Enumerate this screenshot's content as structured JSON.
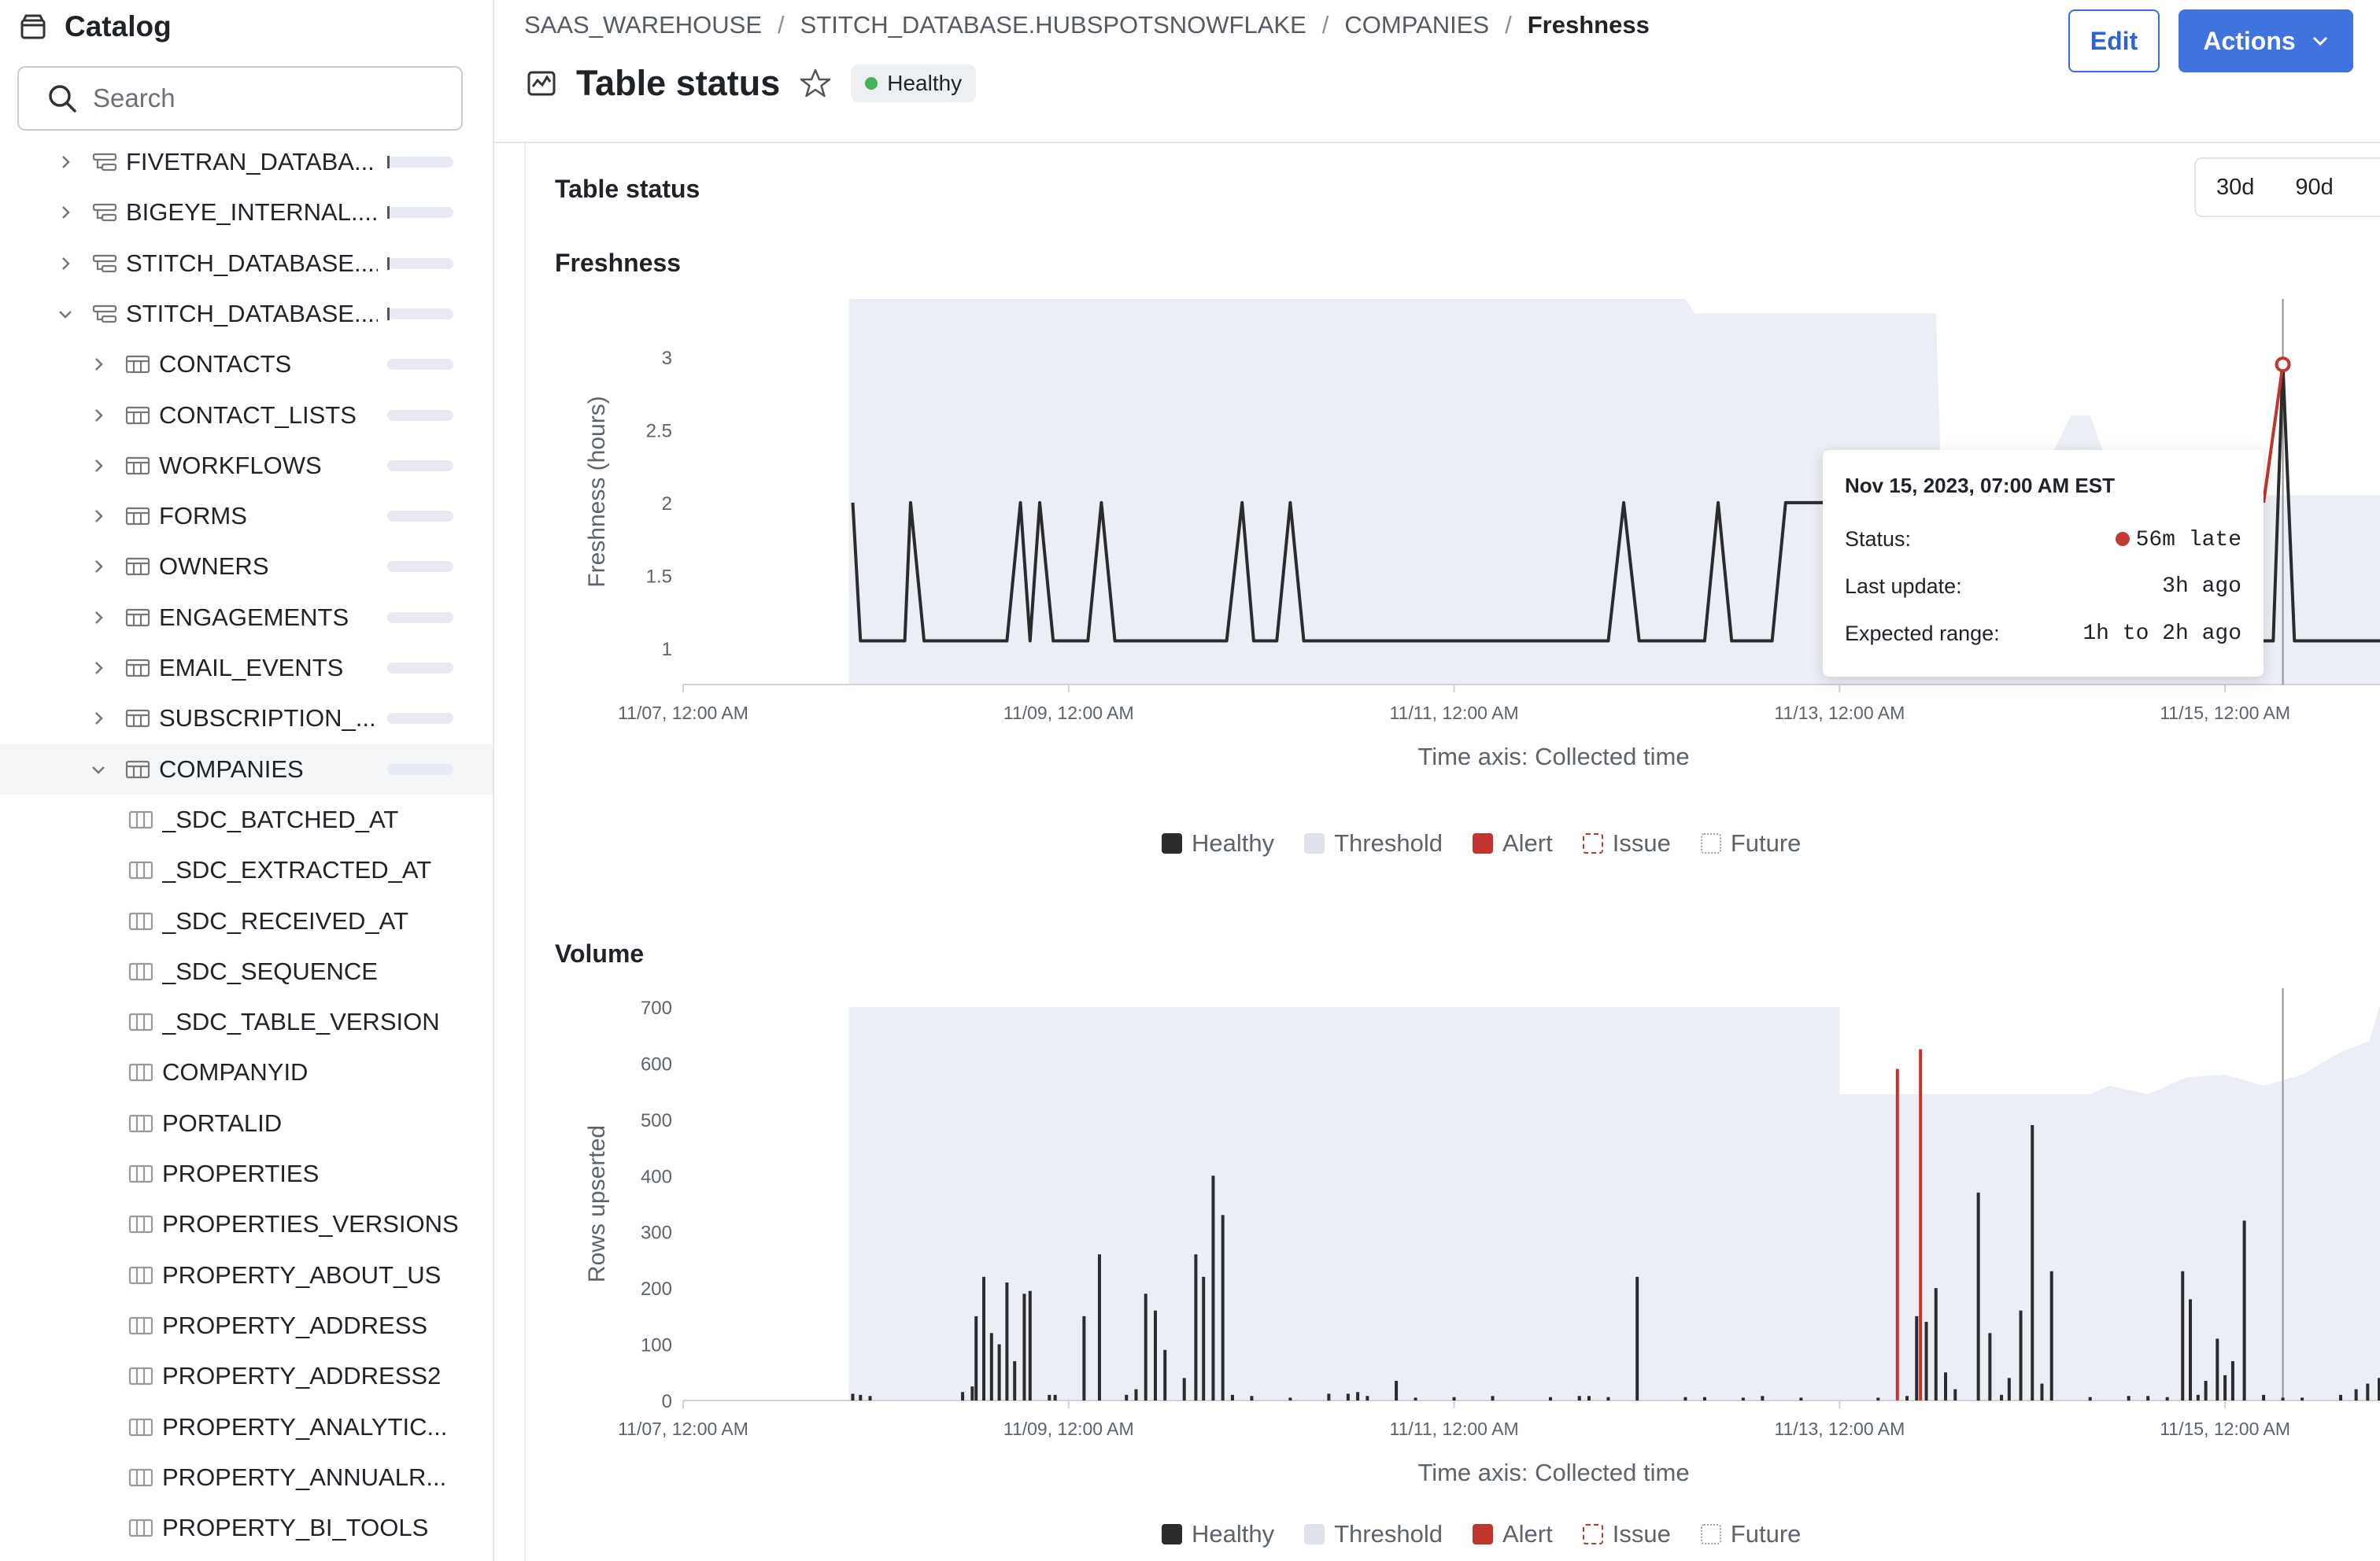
{
  "sidebar": {
    "title": "Catalog",
    "search_placeholder": "Search",
    "items": [
      {
        "label": "FIVETRAN_DATABA...",
        "kind": "schema",
        "expanded": false,
        "indent": 0
      },
      {
        "label": "BIGEYE_INTERNAL....",
        "kind": "schema",
        "expanded": false,
        "indent": 0
      },
      {
        "label": "STITCH_DATABASE....",
        "kind": "schema",
        "expanded": false,
        "indent": 0
      },
      {
        "label": "STITCH_DATABASE....",
        "kind": "schema",
        "expanded": true,
        "indent": 0
      },
      {
        "label": "CONTACTS",
        "kind": "table",
        "expanded": false,
        "indent": 1
      },
      {
        "label": "CONTACT_LISTS",
        "kind": "table",
        "expanded": false,
        "indent": 1
      },
      {
        "label": "WORKFLOWS",
        "kind": "table",
        "expanded": false,
        "indent": 1
      },
      {
        "label": "FORMS",
        "kind": "table",
        "expanded": false,
        "indent": 1
      },
      {
        "label": "OWNERS",
        "kind": "table",
        "expanded": false,
        "indent": 1
      },
      {
        "label": "ENGAGEMENTS",
        "kind": "table",
        "expanded": false,
        "indent": 1
      },
      {
        "label": "EMAIL_EVENTS",
        "kind": "table",
        "expanded": false,
        "indent": 1
      },
      {
        "label": "SUBSCRIPTION_...",
        "kind": "table",
        "expanded": false,
        "indent": 1
      },
      {
        "label": "COMPANIES",
        "kind": "table",
        "expanded": true,
        "indent": 1,
        "selected": true
      },
      {
        "label": "_SDC_BATCHED_AT",
        "kind": "column",
        "indent": 2
      },
      {
        "label": "_SDC_EXTRACTED_AT",
        "kind": "column",
        "indent": 2
      },
      {
        "label": "_SDC_RECEIVED_AT",
        "kind": "column",
        "indent": 2
      },
      {
        "label": "_SDC_SEQUENCE",
        "kind": "column",
        "indent": 2
      },
      {
        "label": "_SDC_TABLE_VERSION",
        "kind": "column",
        "indent": 2
      },
      {
        "label": "COMPANYID",
        "kind": "column",
        "indent": 2
      },
      {
        "label": "PORTALID",
        "kind": "column",
        "indent": 2
      },
      {
        "label": "PROPERTIES",
        "kind": "column",
        "indent": 2
      },
      {
        "label": "PROPERTIES_VERSIONS",
        "kind": "column",
        "indent": 2
      },
      {
        "label": "PROPERTY_ABOUT_US",
        "kind": "column",
        "indent": 2
      },
      {
        "label": "PROPERTY_ADDRESS",
        "kind": "column",
        "indent": 2
      },
      {
        "label": "PROPERTY_ADDRESS2",
        "kind": "column",
        "indent": 2
      },
      {
        "label": "PROPERTY_ANALYTIC...",
        "kind": "column",
        "indent": 2
      },
      {
        "label": "PROPERTY_ANNUALR...",
        "kind": "column",
        "indent": 2
      },
      {
        "label": "PROPERTY_BI_TOOLS",
        "kind": "column",
        "indent": 2
      }
    ]
  },
  "header": {
    "breadcrumb": [
      "SAAS_WAREHOUSE",
      "STITCH_DATABASE.HUBSPOTSNOWFLAKE",
      "COMPANIES",
      "Freshness"
    ],
    "breadcrumb_separator": "/",
    "title": "Table status",
    "status": "Healthy",
    "edit_label": "Edit",
    "actions_label": "Actions"
  },
  "section": {
    "title": "Table status",
    "ranges": [
      "30d",
      "90d"
    ]
  },
  "colors": {
    "healthy": "#2b2b2e",
    "threshold": "#eceef5",
    "alert": "#c0352d",
    "accent": "#3f73de",
    "status_green": "#45b25a"
  },
  "legend": [
    "Healthy",
    "Threshold",
    "Alert",
    "Issue",
    "Future"
  ],
  "tooltip": {
    "date": "Nov 15, 2023, 07:00 AM EST",
    "status_label": "Status:",
    "status_value": "56m late",
    "last_update_label": "Last update:",
    "last_update_value": "3h ago",
    "expected_label": "Expected range:",
    "expected_value": "1h to 2h ago"
  },
  "chart_data": [
    {
      "type": "line",
      "title": "Freshness",
      "xlabel": "Time axis: Collected time",
      "ylabel": "Freshness (hours)",
      "x_ticks": [
        "11/07, 12:00 AM",
        "11/09, 12:00 AM",
        "11/11, 12:00 AM",
        "11/13, 12:00 AM",
        "11/15, 12:00 AM"
      ],
      "y_ticks": [
        1,
        1.5,
        2,
        2.5,
        3
      ],
      "ylim": [
        0.75,
        3.4
      ],
      "xlim_days": [
        0,
        9.0
      ],
      "threshold_upper": [
        [
          0.86,
          3.4
        ],
        [
          5.2,
          3.4
        ],
        [
          5.25,
          3.3
        ],
        [
          6.5,
          3.3
        ],
        [
          6.53,
          2.05
        ],
        [
          7.0,
          2.05
        ],
        [
          7.2,
          2.6
        ],
        [
          7.3,
          2.6
        ],
        [
          7.45,
          2.05
        ],
        [
          8.4,
          2.05
        ],
        [
          8.55,
          2.05
        ],
        [
          8.6,
          2.05
        ],
        [
          9.0,
          2.05
        ]
      ],
      "healthy_points": [
        [
          0.88,
          2.0
        ],
        [
          0.92,
          1.05
        ],
        [
          1.15,
          1.05
        ],
        [
          1.18,
          2.0
        ],
        [
          1.25,
          1.05
        ],
        [
          1.68,
          1.05
        ],
        [
          1.75,
          2.0
        ],
        [
          1.8,
          1.05
        ],
        [
          1.85,
          2.0
        ],
        [
          1.92,
          1.05
        ],
        [
          2.1,
          1.05
        ],
        [
          2.17,
          2.0
        ],
        [
          2.24,
          1.05
        ],
        [
          2.82,
          1.05
        ],
        [
          2.9,
          2.0
        ],
        [
          2.96,
          1.05
        ],
        [
          3.08,
          1.05
        ],
        [
          3.15,
          2.0
        ],
        [
          3.22,
          1.05
        ],
        [
          4.8,
          1.05
        ],
        [
          4.88,
          2.0
        ],
        [
          4.96,
          1.05
        ],
        [
          5.3,
          1.05
        ],
        [
          5.37,
          2.0
        ],
        [
          5.44,
          1.05
        ],
        [
          5.65,
          1.05
        ],
        [
          5.72,
          2.0
        ],
        [
          6.0,
          2.0
        ],
        [
          8.0,
          1.05
        ],
        [
          8.18,
          1.05
        ],
        [
          8.25,
          1.05
        ],
        [
          8.3,
          2.95
        ],
        [
          8.36,
          1.05
        ],
        [
          9.0,
          1.05
        ]
      ],
      "alert_points": [
        [
          8.2,
          2.0
        ],
        [
          8.3,
          2.95
        ]
      ],
      "legend": [
        "Healthy",
        "Threshold",
        "Alert",
        "Issue",
        "Future"
      ]
    },
    {
      "type": "bar",
      "title": "Volume",
      "xlabel": "Time axis: Collected time",
      "ylabel": "Rows upserted",
      "x_ticks": [
        "11/07, 12:00 AM",
        "11/09, 12:00 AM",
        "11/11, 12:00 AM",
        "11/13, 12:00 AM",
        "11/15, 12:00 AM"
      ],
      "y_ticks": [
        0,
        100,
        200,
        300,
        400,
        500,
        600,
        700
      ],
      "ylim": [
        0,
        700
      ],
      "xlim_days": [
        0,
        9.0
      ],
      "threshold_upper": [
        [
          0.86,
          700
        ],
        [
          6.0,
          700
        ],
        [
          6.0,
          545
        ],
        [
          7.3,
          545
        ],
        [
          7.4,
          560
        ],
        [
          7.6,
          545
        ],
        [
          7.8,
          575
        ],
        [
          8.0,
          580
        ],
        [
          8.2,
          560
        ],
        [
          8.4,
          580
        ],
        [
          8.6,
          620
        ],
        [
          8.75,
          640
        ],
        [
          8.8,
          700
        ],
        [
          9.0,
          700
        ]
      ],
      "healthy_bars": [
        [
          0.88,
          12
        ],
        [
          0.92,
          10
        ],
        [
          0.97,
          8
        ],
        [
          1.45,
          15
        ],
        [
          1.5,
          25
        ],
        [
          1.52,
          150
        ],
        [
          1.56,
          220
        ],
        [
          1.6,
          120
        ],
        [
          1.64,
          100
        ],
        [
          1.68,
          210
        ],
        [
          1.72,
          70
        ],
        [
          1.77,
          190
        ],
        [
          1.8,
          195
        ],
        [
          1.9,
          10
        ],
        [
          1.93,
          10
        ],
        [
          2.08,
          150
        ],
        [
          2.16,
          260
        ],
        [
          2.3,
          10
        ],
        [
          2.35,
          20
        ],
        [
          2.4,
          190
        ],
        [
          2.45,
          160
        ],
        [
          2.5,
          90
        ],
        [
          2.6,
          40
        ],
        [
          2.66,
          260
        ],
        [
          2.7,
          220
        ],
        [
          2.75,
          400
        ],
        [
          2.8,
          330
        ],
        [
          2.85,
          10
        ],
        [
          2.95,
          8
        ],
        [
          3.15,
          5
        ],
        [
          3.35,
          12
        ],
        [
          3.45,
          12
        ],
        [
          3.5,
          15
        ],
        [
          3.55,
          8
        ],
        [
          3.7,
          35
        ],
        [
          3.8,
          5
        ],
        [
          4.0,
          6
        ],
        [
          4.2,
          8
        ],
        [
          4.5,
          6
        ],
        [
          4.65,
          8
        ],
        [
          4.7,
          8
        ],
        [
          4.8,
          6
        ],
        [
          4.95,
          220
        ],
        [
          5.2,
          6
        ],
        [
          5.3,
          6
        ],
        [
          5.5,
          5
        ],
        [
          5.6,
          8
        ],
        [
          5.8,
          5
        ],
        [
          6.2,
          5
        ],
        [
          6.35,
          8
        ],
        [
          6.4,
          150
        ],
        [
          6.45,
          140
        ],
        [
          6.5,
          200
        ],
        [
          6.55,
          50
        ],
        [
          6.6,
          20
        ],
        [
          6.72,
          370
        ],
        [
          6.78,
          120
        ],
        [
          6.84,
          10
        ],
        [
          6.88,
          40
        ],
        [
          6.94,
          160
        ],
        [
          7.0,
          490
        ],
        [
          7.05,
          30
        ],
        [
          7.1,
          230
        ],
        [
          7.3,
          6
        ],
        [
          7.5,
          8
        ],
        [
          7.6,
          8
        ],
        [
          7.7,
          6
        ],
        [
          7.78,
          230
        ],
        [
          7.82,
          180
        ],
        [
          7.86,
          10
        ],
        [
          7.9,
          35
        ],
        [
          7.96,
          110
        ],
        [
          8.0,
          45
        ],
        [
          8.04,
          70
        ],
        [
          8.1,
          320
        ],
        [
          8.2,
          10
        ],
        [
          8.3,
          5
        ],
        [
          8.4,
          5
        ],
        [
          8.6,
          10
        ],
        [
          8.68,
          20
        ],
        [
          8.74,
          30
        ],
        [
          8.8,
          40
        ],
        [
          8.88,
          50
        ],
        [
          8.94,
          60
        ],
        [
          8.98,
          50
        ]
      ],
      "alert_bars": [
        [
          6.3,
          590
        ],
        [
          6.42,
          625
        ]
      ],
      "legend": [
        "Healthy",
        "Threshold",
        "Alert",
        "Issue",
        "Future"
      ]
    }
  ]
}
